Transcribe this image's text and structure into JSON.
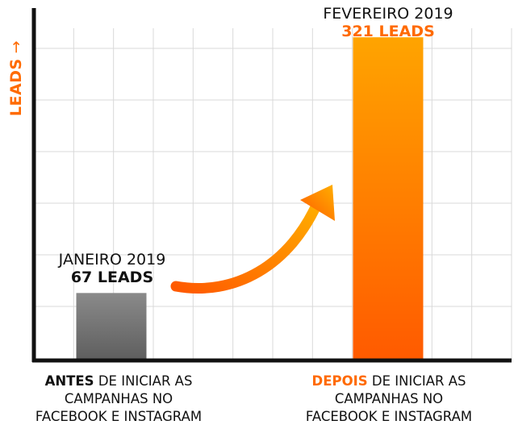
{
  "y_title": "LEADS",
  "y_arrow": "→",
  "colors": {
    "axis": "#111111",
    "grid": "#d9d9d9",
    "accent": "#ff6a00",
    "bar_before_top": "#8a8a8a",
    "bar_before_bottom": "#5e5e5e",
    "bar_after_top": "#ffa400",
    "bar_after_bottom": "#ff5a00",
    "arrow_start": "#ff5a00",
    "arrow_end": "#ffb000"
  },
  "chart_data": {
    "type": "bar",
    "categories": [
      "ANTES DE INICIAR AS CAMPANHAS NO FACEBOOK E INSTAGRAM",
      "DEPOIS DE INICIAR AS CAMPANHAS NO FACEBOOK E INSTAGRAM"
    ],
    "values": [
      67,
      321
    ],
    "ylim": [
      0,
      350
    ],
    "grid": true,
    "ylabel": "LEADS"
  },
  "bars": [
    {
      "period": "JANEIRO 2019",
      "leads_text": "67 LEADS",
      "leads_color": "#111111",
      "category_keyword": "ANTES",
      "category_rest_1": " DE INICIAR AS",
      "category_line_2": "CAMPANHAS NO",
      "category_line_3": "FACEBOOK E INSTAGRAM"
    },
    {
      "period": "FEVEREIRO 2019",
      "leads_text": "321 LEADS",
      "leads_color": "#ff6a00",
      "category_keyword": "DEPOIS",
      "category_rest_1": " DE INICIAR AS",
      "category_line_2": "CAMPANHAS NO",
      "category_line_3": "FACEBOOK E INSTAGRAM"
    }
  ]
}
